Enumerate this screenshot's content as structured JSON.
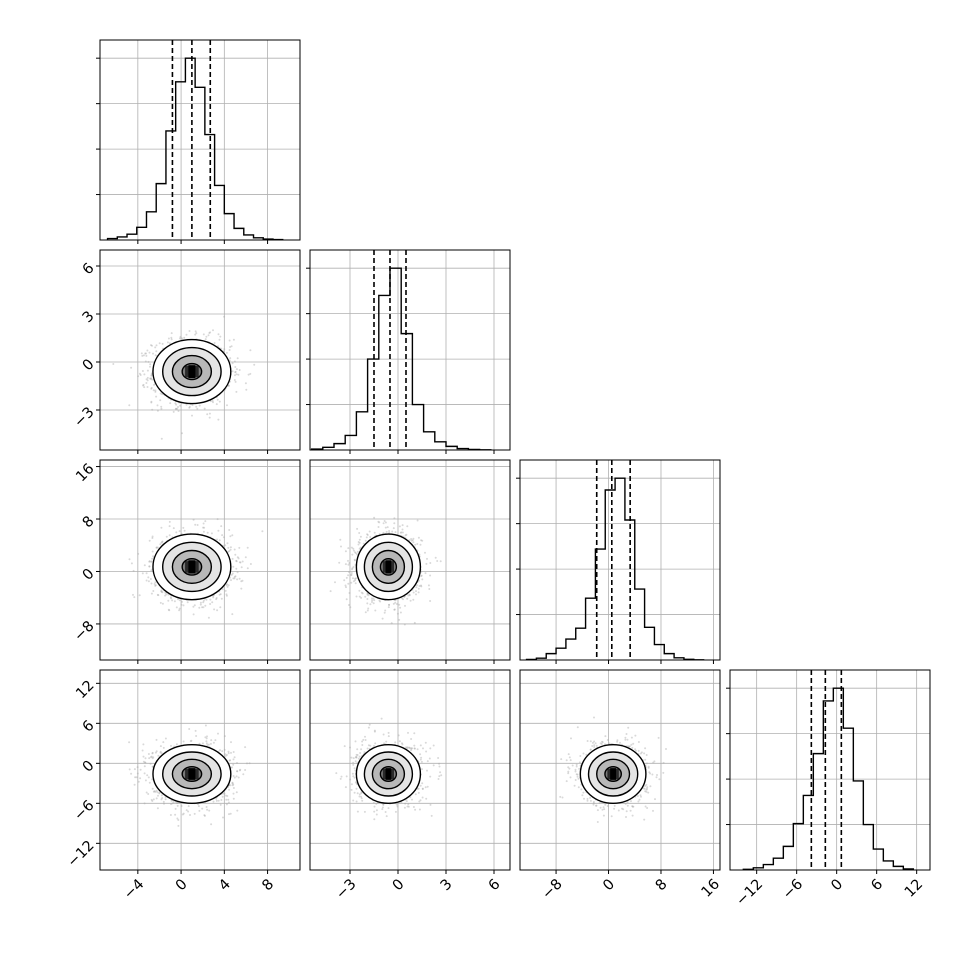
{
  "chart_data": {
    "type": "scatter",
    "layout": "corner",
    "grid": true,
    "dims": [
      {
        "range": [
          -7.5,
          11.0
        ],
        "ticks": [
          -4,
          0,
          4,
          8
        ],
        "tick_labels": [
          "−4",
          "0",
          "4",
          "8"
        ],
        "mean": 1.0,
        "std": 1.8,
        "quantiles": [
          -0.8,
          1.0,
          2.7
        ]
      },
      {
        "range": [
          -5.5,
          7.0
        ],
        "ticks": [
          -3,
          0,
          3,
          6
        ],
        "tick_labels": [
          "−3",
          "0",
          "3",
          "6"
        ],
        "mean": -0.6,
        "std": 1.0,
        "quantiles": [
          -1.5,
          -0.5,
          0.5
        ]
      },
      {
        "range": [
          -13.5,
          17.0
        ],
        "ticks": [
          -8,
          0,
          8,
          16
        ],
        "tick_labels": [
          "−8",
          "0",
          "8",
          "16"
        ],
        "mean": 0.7,
        "std": 2.5,
        "quantiles": [
          -1.8,
          0.5,
          3.3
        ]
      },
      {
        "range": [
          -16.0,
          14.0
        ],
        "ticks": [
          -12,
          -6,
          0,
          6,
          12
        ],
        "tick_labels": [
          "−12",
          "−6",
          "0",
          "6",
          "12"
        ],
        "mean": -1.6,
        "std": 2.2,
        "quantiles": [
          -3.8,
          -1.7,
          0.7
        ]
      }
    ],
    "histograms": [
      {
        "bins": [
          -6.8,
          -5.9,
          -5.0,
          -4.1,
          -3.2,
          -2.3,
          -1.4,
          -0.5,
          0.4,
          1.3,
          2.2,
          3.1,
          4.0,
          4.9,
          5.8,
          6.7,
          7.6,
          8.5,
          9.4
        ],
        "counts": [
          8,
          17,
          32,
          70,
          155,
          310,
          600,
          870,
          1000,
          840,
          580,
          300,
          145,
          64,
          28,
          12,
          5,
          2
        ]
      },
      {
        "bins": [
          -5.4,
          -4.7,
          -4.0,
          -3.3,
          -2.6,
          -1.9,
          -1.2,
          -0.5,
          0.2,
          0.9,
          1.6,
          2.3,
          3.0,
          3.7,
          4.4,
          5.1,
          5.8
        ],
        "counts": [
          5,
          15,
          35,
          80,
          210,
          500,
          850,
          1000,
          640,
          250,
          100,
          45,
          20,
          8,
          3,
          1
        ]
      },
      {
        "bins": [
          -12.5,
          -11.0,
          -9.5,
          -8.0,
          -6.5,
          -5.0,
          -3.5,
          -2.0,
          -0.5,
          1.0,
          2.5,
          4.0,
          5.5,
          7.0,
          8.5,
          10.0,
          11.5,
          13.0,
          14.5
        ],
        "counts": [
          3,
          10,
          35,
          65,
          115,
          175,
          340,
          610,
          935,
          1000,
          770,
          390,
          180,
          85,
          35,
          12,
          4,
          1
        ]
      },
      {
        "bins": [
          -14.0,
          -12.5,
          -11.0,
          -9.5,
          -8.0,
          -6.5,
          -5.0,
          -3.5,
          -2.0,
          -0.5,
          1.0,
          2.5,
          4.0,
          5.5,
          7.0,
          8.5,
          10.0,
          11.5
        ],
        "counts": [
          4,
          12,
          30,
          65,
          130,
          255,
          410,
          640,
          930,
          1000,
          780,
          490,
          250,
          115,
          50,
          20,
          6
        ]
      }
    ],
    "pairs": [
      {
        "x": 0,
        "y": 1,
        "rho": 0.0
      },
      {
        "x": 0,
        "y": 2,
        "rho": 0.0
      },
      {
        "x": 1,
        "y": 2,
        "rho": 0.0
      },
      {
        "x": 0,
        "y": 3,
        "rho": 0.0
      },
      {
        "x": 1,
        "y": 3,
        "rho": 0.0
      },
      {
        "x": 2,
        "y": 3,
        "rho": 0.0
      }
    ],
    "contour_levels_sigma": [
      0.5,
      1.0,
      1.5,
      2.0
    ],
    "scatter_color": "#aaaaaa",
    "line_color": "#000000",
    "grid_color": "#b0b0b0"
  }
}
